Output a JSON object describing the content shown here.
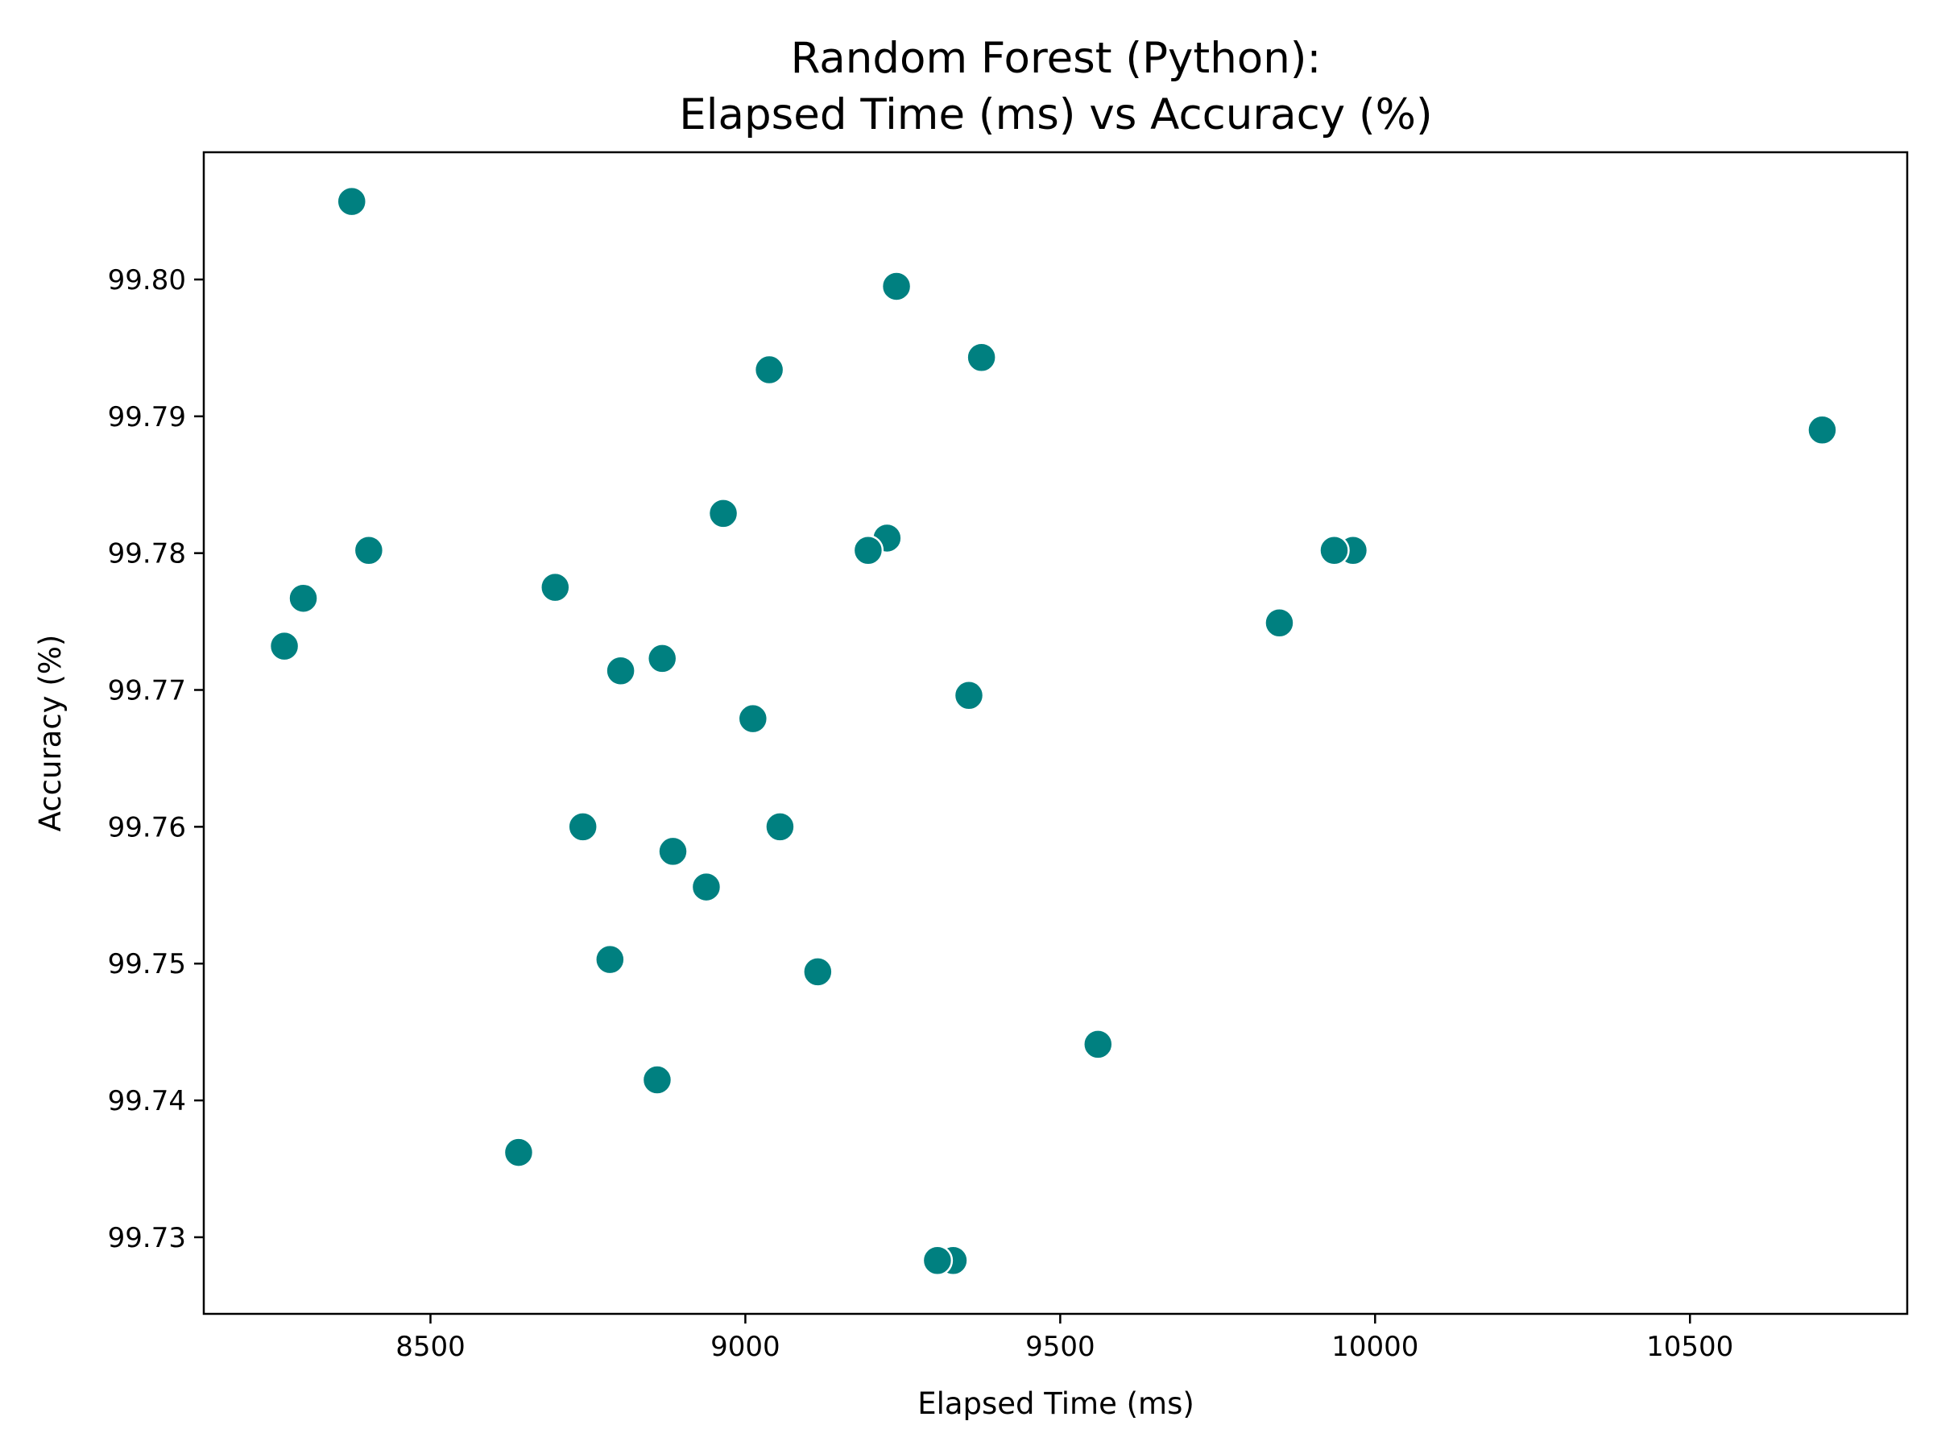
{
  "chart_data": {
    "type": "scatter",
    "title_lines": [
      "Random Forest (Python):",
      "Elapsed Time (ms) vs Accuracy (%)"
    ],
    "xlabel": "Elapsed Time (ms)",
    "ylabel": "Accuracy (%)",
    "xlim": [
      8140,
      10845
    ],
    "ylim": [
      99.7244,
      99.8093
    ],
    "x_ticks": [
      8500,
      9000,
      9500,
      10000,
      10500
    ],
    "x_tick_labels": [
      "8500",
      "9000",
      "9500",
      "10000",
      "10500"
    ],
    "y_ticks": [
      99.73,
      99.74,
      99.75,
      99.76,
      99.77,
      99.78,
      99.79,
      99.8
    ],
    "y_tick_labels": [
      "99.73",
      "99.74",
      "99.75",
      "99.76",
      "99.77",
      "99.78",
      "99.79",
      "99.80"
    ],
    "grid": false,
    "marker_color": "#008080",
    "marker_edge_color": "#ffffff",
    "points": [
      {
        "x": 8375,
        "y": 99.8057
      },
      {
        "x": 9240,
        "y": 99.7995
      },
      {
        "x": 9375,
        "y": 99.7943
      },
      {
        "x": 9038,
        "y": 99.7934
      },
      {
        "x": 10710,
        "y": 99.789
      },
      {
        "x": 8965,
        "y": 99.7829
      },
      {
        "x": 9225,
        "y": 99.7811
      },
      {
        "x": 9195,
        "y": 99.7802
      },
      {
        "x": 8402,
        "y": 99.7802
      },
      {
        "x": 9965,
        "y": 99.7802
      },
      {
        "x": 9935,
        "y": 99.7802
      },
      {
        "x": 8298,
        "y": 99.7767
      },
      {
        "x": 8698,
        "y": 99.7775
      },
      {
        "x": 9848,
        "y": 99.7749
      },
      {
        "x": 8268,
        "y": 99.7732
      },
      {
        "x": 8868,
        "y": 99.7723
      },
      {
        "x": 8802,
        "y": 99.7714
      },
      {
        "x": 9355,
        "y": 99.7696
      },
      {
        "x": 9012,
        "y": 99.7679
      },
      {
        "x": 8742,
        "y": 99.76
      },
      {
        "x": 9055,
        "y": 99.76
      },
      {
        "x": 8885,
        "y": 99.7582
      },
      {
        "x": 8938,
        "y": 99.7556
      },
      {
        "x": 8785,
        "y": 99.7503
      },
      {
        "x": 9115,
        "y": 99.7494
      },
      {
        "x": 9560,
        "y": 99.7441
      },
      {
        "x": 8860,
        "y": 99.7415
      },
      {
        "x": 8640,
        "y": 99.7362
      },
      {
        "x": 9330,
        "y": 99.7283
      },
      {
        "x": 9305,
        "y": 99.7283
      }
    ]
  }
}
